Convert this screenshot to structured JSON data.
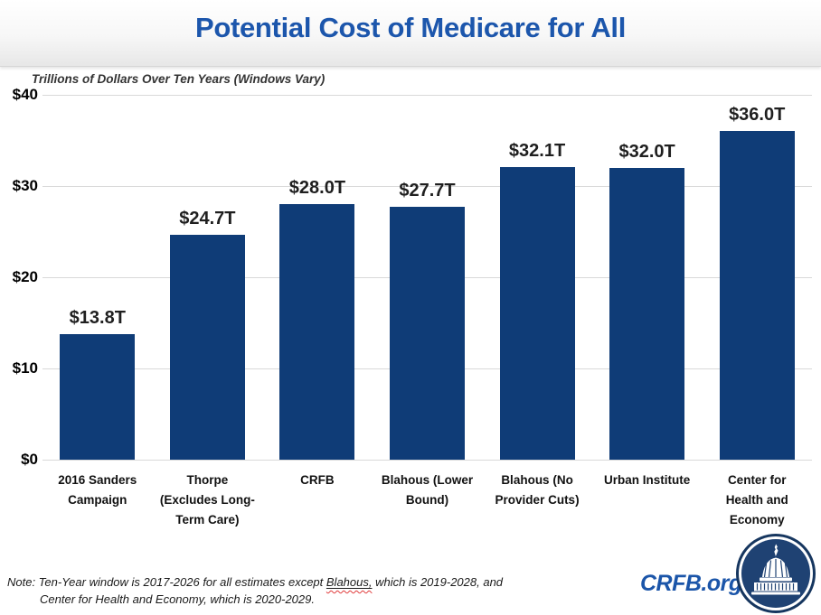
{
  "header": {
    "title": "Potential Cost of Medicare for All"
  },
  "chart": {
    "subtitle": "Trillions of Dollars Over Ten Years (Windows Vary)"
  },
  "chart_data": {
    "type": "bar",
    "title": "Potential Cost of Medicare for All",
    "subtitle": "Trillions of Dollars Over Ten Years (Windows Vary)",
    "unit": "Trillions of dollars over ten years",
    "categories": [
      "2016 Sanders Campaign",
      "Thorpe (Excludes Long-Term Care)",
      "CRFB",
      "Blahous (Lower Bound)",
      "Blahous (No Provider Cuts)",
      "Urban Institute",
      "Center for Health and Economy"
    ],
    "category_lines": [
      [
        "2016 Sanders",
        "Campaign"
      ],
      [
        "Thorpe",
        "(Excludes Long-",
        "Term Care)"
      ],
      [
        "CRFB"
      ],
      [
        "Blahous (Lower",
        "Bound)"
      ],
      [
        "Blahous (No",
        "Provider Cuts)"
      ],
      [
        "Urban Institute"
      ],
      [
        "Center for",
        "Health and",
        "Economy"
      ]
    ],
    "values": [
      13.8,
      24.7,
      28.0,
      27.7,
      32.1,
      32.0,
      36.0
    ],
    "value_labels": [
      "$13.8T",
      "$24.7T",
      "$28.0T",
      "$27.7T",
      "$32.1T",
      "$32.0T",
      "$36.0T"
    ],
    "ylim": [
      0,
      40
    ],
    "yticks": [
      {
        "value": 40,
        "label": "$40"
      },
      {
        "value": 30,
        "label": "$30"
      },
      {
        "value": 20,
        "label": "$20"
      },
      {
        "value": 10,
        "label": "$10"
      },
      {
        "value": 0,
        "label": "$0"
      }
    ],
    "grid": true,
    "legend": "none",
    "bar_color": "#0F3C77",
    "gridline_color": "#D9D9D9"
  },
  "footer": {
    "note_prefix": "Note: Ten-Year window is 2017-2026 for all estimates except ",
    "note_flagged_word": "Blahous,",
    "note_suffix": " which is 2019-2028, and",
    "note_line2": "Center for Health and Economy, which is 2020-2029.",
    "brand": "CRFB.org"
  },
  "colors": {
    "title_blue": "#1C56AC",
    "brand_blue": "#1B55A9",
    "bar_navy": "#0F3C77",
    "logo_navy": "#1f4273",
    "logo_ring": "#16365f"
  }
}
